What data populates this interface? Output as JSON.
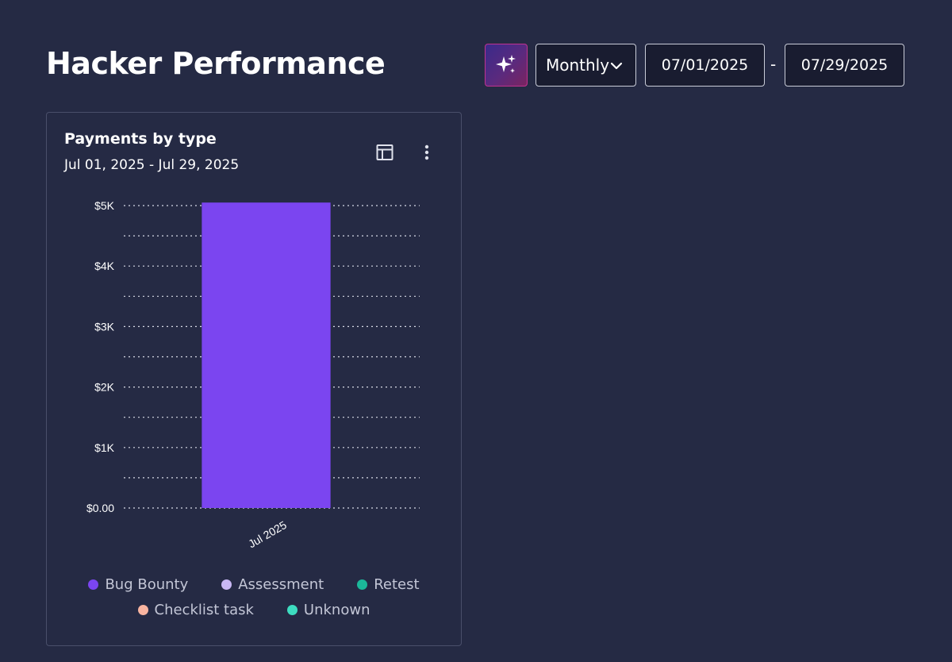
{
  "header": {
    "title": "Hacker Performance"
  },
  "toolbar": {
    "ai_icon": "sparkles-icon",
    "period_value": "Monthly",
    "period_icon": "chevron-down-icon",
    "start_date": "07/01/2025",
    "date_separator": "-",
    "end_date": "07/29/2025"
  },
  "card": {
    "title": "Payments by type",
    "subtitle": "Jul 01, 2025 - Jul 29, 2025",
    "table_icon": "table-icon",
    "more_icon": "more-vertical-icon"
  },
  "colors": {
    "background": "#252a44",
    "bug_bounty": "#7b45f0",
    "assessment": "#c9b8f5",
    "retest": "#1bb89a",
    "checklist_task": "#f9b4a0",
    "unknown": "#3ddcc0"
  },
  "chart_data": {
    "type": "bar",
    "stacked": true,
    "title": "Payments by type",
    "subtitle": "Jul 01, 2025 - Jul 29, 2025",
    "categories": [
      "Jul 2025"
    ],
    "series": [
      {
        "name": "Bug Bounty",
        "color": "#7b45f0",
        "values": [
          5050
        ]
      },
      {
        "name": "Assessment",
        "color": "#c9b8f5",
        "values": [
          0
        ]
      },
      {
        "name": "Retest",
        "color": "#1bb89a",
        "values": [
          0
        ]
      },
      {
        "name": "Checklist task",
        "color": "#f9b4a0",
        "values": [
          0
        ]
      },
      {
        "name": "Unknown",
        "color": "#3ddcc0",
        "values": [
          0
        ]
      }
    ],
    "ylim": [
      0,
      5000
    ],
    "yticks": [
      0,
      1000,
      2000,
      3000,
      4000,
      5000
    ],
    "ytick_labels": [
      "$0.00",
      "$1K",
      "$2K",
      "$3K",
      "$4K",
      "$5K"
    ],
    "grid": true,
    "grid_style": "dotted",
    "legend_position": "bottom",
    "legend_rows": [
      [
        "Bug Bounty",
        "Assessment",
        "Retest"
      ],
      [
        "Checklist task",
        "Unknown"
      ]
    ]
  }
}
